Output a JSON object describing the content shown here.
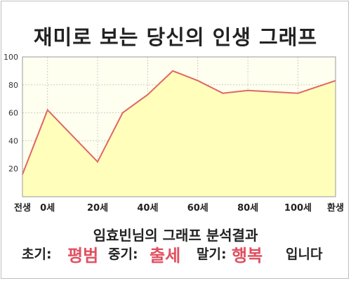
{
  "title": "재미로 보는 당신의 인생 그래프",
  "result_heading": "임효빈님의 그래프 분석결과",
  "phases": {
    "early_label": "초기:",
    "early_value": "평범",
    "middle_label": "중기:",
    "middle_value": "출세",
    "late_label": "말기:",
    "late_value": "행복",
    "suffix": "입니다"
  },
  "colors": {
    "line": "#e06666",
    "fill": "#ffffbb",
    "plot_bg": "#fffff0",
    "highlight": "#e05060"
  },
  "chart_data": {
    "type": "area",
    "x": [
      -10,
      0,
      20,
      30,
      40,
      50,
      60,
      70,
      80,
      90,
      100,
      115
    ],
    "y": [
      16,
      62,
      25,
      60,
      73,
      90,
      83,
      74,
      76,
      75,
      74,
      83
    ],
    "xlim": [
      -10,
      115
    ],
    "ylim": [
      0,
      100
    ],
    "yticks": [
      20,
      40,
      60,
      80,
      100
    ],
    "xtick_labels": [
      {
        "x": -10,
        "label": "전생"
      },
      {
        "x": 0,
        "label": "0세"
      },
      {
        "x": 20,
        "label": "20세"
      },
      {
        "x": 40,
        "label": "40세"
      },
      {
        "x": 60,
        "label": "60세"
      },
      {
        "x": 80,
        "label": "80세"
      },
      {
        "x": 100,
        "label": "100세"
      },
      {
        "x": 115,
        "label": "환생"
      }
    ],
    "grid": true
  }
}
